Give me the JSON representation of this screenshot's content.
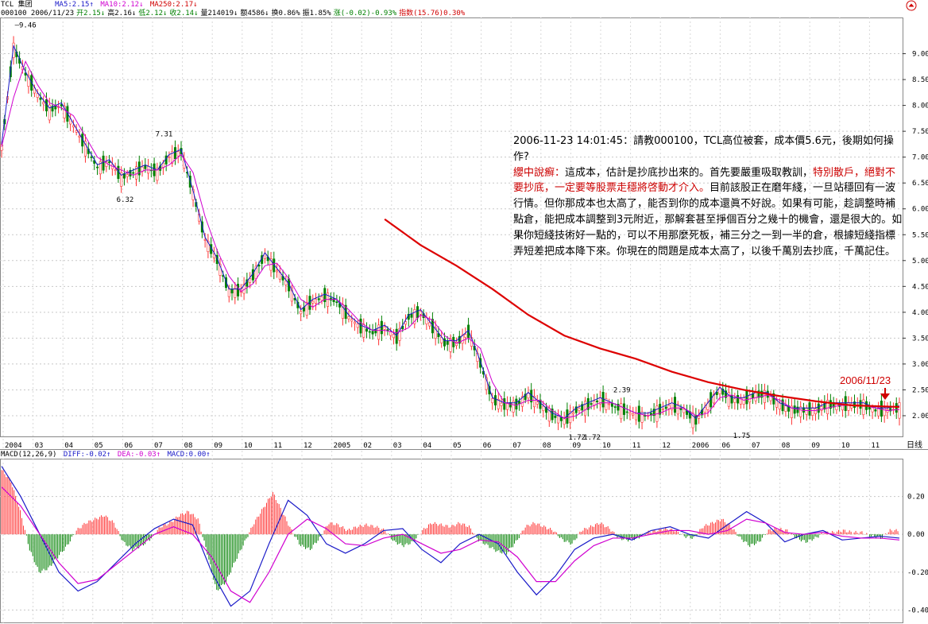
{
  "header": {
    "title": "TCL 集团",
    "ma5": "MA5:2.15↑",
    "ma10": "MA10:2.12↓",
    "ma250": "MA250:2.17↓",
    "code_date": "000100 2006/11/23",
    "open": "开2.15↓",
    "high": "高2.16↓",
    "low": "低2.12↓",
    "close": "收2.14↓",
    "volume": "量214019↓",
    "amount": "额4586↓",
    "turnover": "换0.86%",
    "amplitude": "振1.85%",
    "change": "涨(-0.02)-0.93%",
    "index": "指数(15.76)0.30%"
  },
  "annotation": {
    "question": "2006-11-23 14:01:45：請教000100，TCL高位被套，成本價5.6元，後期如何操作?",
    "reply_label": "纓中說癬：",
    "reply_part1": "這成本，估計是抄底抄出來的。首先要嚴重吸取教訓，",
    "reply_red": "特別散戶，絕對不要抄底，一定要等股票走穩將啓動才介入。",
    "reply_part2": "目前該股正在磨年綫，一旦站穩回有一波行情。但你那成本也太高了，能否到你的成本還眞不好說。如果有可能，趁調整時補點倉，能把成本調整到3元附近，那解套甚至掙個百分之幾十的機會，還是很大的。如果你短綫技術好一點的，可以不用那麼死板，補三分之一到一半的倉，根據短綫指標弄短差把成本降下來。你現在的問題是成本太高了，以後千萬別去抄底，千萬記住。"
  },
  "date_marker": "2006/11/23",
  "macd_header": {
    "label": "MACD(12,26,9)",
    "diff": "DIFF:-0.02↑",
    "dea": "DEA:-0.03↑",
    "macd": "MACD:0.00↑"
  },
  "period_label": "日线",
  "chart_data": {
    "type": "candlestick",
    "price_axis": {
      "ticks": [
        2.0,
        2.5,
        3.0,
        3.5,
        4.0,
        4.5,
        5.0,
        5.5,
        6.0,
        6.5,
        7.0,
        7.5,
        8.0,
        8.5,
        9.0
      ],
      "ylim": [
        1.6,
        9.7
      ]
    },
    "macd_axis": {
      "ticks": [
        0.2,
        0.0,
        -0.2,
        -0.4
      ],
      "ylim": [
        -0.47,
        0.4
      ]
    },
    "x_ticks": [
      "2004",
      "03",
      "04",
      "05",
      "06",
      "07",
      "08",
      "09",
      "10",
      "11",
      "12",
      "2005",
      "02",
      "03",
      "04",
      "05",
      "06",
      "07",
      "08",
      "09",
      "10",
      "11",
      "12",
      "2006",
      "06",
      "07",
      "08",
      "09",
      "10",
      "11"
    ],
    "price_labels": [
      {
        "text": "9.46",
        "value": 9.46
      },
      {
        "text": "7.31",
        "value": 7.31
      },
      {
        "text": "6.32",
        "value": 6.32
      },
      {
        "text": "2.39",
        "value": 2.39
      },
      {
        "text": "1.72",
        "value": 1.72
      },
      {
        "text": "1.72",
        "value": 1.72
      },
      {
        "text": "1.75",
        "value": 1.75
      }
    ],
    "close_path": [
      [
        0,
        7.2
      ],
      [
        2,
        9.1
      ],
      [
        4,
        8.6
      ],
      [
        6,
        8.2
      ],
      [
        8,
        7.9
      ],
      [
        10,
        8.0
      ],
      [
        12,
        7.6
      ],
      [
        14,
        7.2
      ],
      [
        16,
        6.8
      ],
      [
        18,
        6.9
      ],
      [
        20,
        6.6
      ],
      [
        22,
        6.7
      ],
      [
        24,
        6.8
      ],
      [
        26,
        6.7
      ],
      [
        28,
        7.0
      ],
      [
        30,
        7.1
      ],
      [
        32,
        6.3
      ],
      [
        34,
        5.4
      ],
      [
        36,
        5.0
      ],
      [
        38,
        4.4
      ],
      [
        40,
        4.4
      ],
      [
        42,
        4.7
      ],
      [
        44,
        5.1
      ],
      [
        46,
        4.8
      ],
      [
        48,
        4.5
      ],
      [
        50,
        4.0
      ],
      [
        52,
        4.2
      ],
      [
        54,
        4.3
      ],
      [
        56,
        4.2
      ],
      [
        58,
        3.9
      ],
      [
        60,
        3.7
      ],
      [
        62,
        3.6
      ],
      [
        64,
        3.7
      ],
      [
        66,
        3.5
      ],
      [
        68,
        3.9
      ],
      [
        70,
        4.0
      ],
      [
        72,
        3.7
      ],
      [
        74,
        3.4
      ],
      [
        76,
        3.4
      ],
      [
        78,
        3.6
      ],
      [
        80,
        3.0
      ],
      [
        82,
        2.3
      ],
      [
        84,
        2.2
      ],
      [
        86,
        2.2
      ],
      [
        88,
        2.4
      ],
      [
        90,
        2.2
      ],
      [
        92,
        2.0
      ],
      [
        94,
        1.9
      ],
      [
        96,
        2.1
      ],
      [
        98,
        2.2
      ],
      [
        100,
        2.3
      ],
      [
        102,
        2.2
      ],
      [
        104,
        2.1
      ],
      [
        106,
        2.0
      ],
      [
        108,
        2.0
      ],
      [
        110,
        2.1
      ],
      [
        112,
        2.2
      ],
      [
        114,
        2.1
      ],
      [
        116,
        1.9
      ],
      [
        118,
        2.2
      ],
      [
        120,
        2.5
      ],
      [
        122,
        2.3
      ],
      [
        124,
        2.3
      ],
      [
        126,
        2.4
      ],
      [
        128,
        2.4
      ],
      [
        130,
        2.2
      ],
      [
        132,
        2.1
      ],
      [
        134,
        2.1
      ],
      [
        136,
        2.1
      ],
      [
        138,
        2.2
      ],
      [
        140,
        2.2
      ],
      [
        142,
        2.2
      ],
      [
        144,
        2.2
      ],
      [
        146,
        2.1
      ],
      [
        148,
        2.1
      ],
      [
        150,
        2.14
      ]
    ],
    "ma250_path": [
      [
        64,
        5.8
      ],
      [
        70,
        5.3
      ],
      [
        76,
        4.9
      ],
      [
        82,
        4.45
      ],
      [
        88,
        3.95
      ],
      [
        94,
        3.55
      ],
      [
        100,
        3.3
      ],
      [
        106,
        3.1
      ],
      [
        112,
        2.85
      ],
      [
        118,
        2.65
      ],
      [
        124,
        2.5
      ],
      [
        130,
        2.38
      ],
      [
        136,
        2.28
      ],
      [
        142,
        2.2
      ],
      [
        150,
        2.17
      ]
    ],
    "macd_hist": [
      0.34,
      0.28,
      0.12,
      -0.08,
      -0.2,
      -0.18,
      -0.12,
      -0.06,
      0.02,
      0.06,
      0.08,
      0.1,
      0.06,
      -0.04,
      -0.08,
      -0.06,
      -0.02,
      0.04,
      0.06,
      0.1,
      0.12,
      0.08,
      -0.1,
      -0.3,
      -0.25,
      -0.14,
      -0.04,
      0.06,
      0.14,
      0.22,
      0.12,
      0.02,
      -0.06,
      -0.08,
      -0.02,
      0.06,
      0.05,
      0.02,
      0.04,
      0.05,
      0.04,
      0.02,
      -0.04,
      -0.06,
      -0.04,
      0.02,
      0.06,
      0.05,
      0.04,
      0.06,
      0.04,
      -0.03,
      -0.06,
      -0.09,
      -0.1,
      -0.04,
      0.04,
      0.06,
      0.04,
      0.02,
      -0.03,
      -0.05,
      0.02,
      0.04,
      0.06,
      0.03,
      -0.02,
      -0.03,
      -0.02,
      0.01,
      0.02,
      0.03,
      0.02,
      -0.01,
      -0.02,
      0.04,
      0.06,
      0.08,
      0.04,
      -0.02,
      -0.06,
      -0.04,
      0.02,
      0.03,
      0.02,
      -0.02,
      -0.04,
      -0.02,
      0.01,
      0.01,
      0.02,
      0.01,
      0.01,
      -0.01,
      -0.02,
      0.02
    ],
    "diff_path": [
      0.36,
      0.2,
      0.0,
      -0.2,
      -0.3,
      -0.25,
      -0.15,
      -0.05,
      0.03,
      0.08,
      0.05,
      -0.2,
      -0.38,
      -0.3,
      -0.05,
      0.18,
      0.1,
      -0.05,
      -0.1,
      -0.05,
      0.02,
      0.03,
      -0.08,
      -0.15,
      -0.05,
      0.0,
      -0.05,
      -0.2,
      -0.32,
      -0.22,
      -0.08,
      -0.02,
      0.0,
      -0.03,
      0.02,
      0.04,
      0.0,
      -0.02,
      0.05,
      0.12,
      0.06,
      -0.04,
      0.0,
      0.02,
      -0.03,
      -0.02,
      -0.01,
      -0.02
    ],
    "dea_path": [
      0.25,
      0.15,
      0.0,
      -0.15,
      -0.26,
      -0.24,
      -0.16,
      -0.08,
      0.0,
      0.04,
      0.0,
      -0.12,
      -0.3,
      -0.36,
      -0.2,
      0.0,
      0.08,
      0.03,
      -0.05,
      -0.06,
      -0.02,
      0.0,
      -0.05,
      -0.1,
      -0.08,
      -0.03,
      -0.04,
      -0.12,
      -0.25,
      -0.25,
      -0.14,
      -0.06,
      -0.02,
      -0.02,
      0.0,
      0.02,
      0.02,
      0.0,
      0.02,
      0.08,
      0.06,
      0.01,
      0.0,
      0.01,
      -0.01,
      -0.02,
      -0.02,
      -0.03
    ]
  }
}
